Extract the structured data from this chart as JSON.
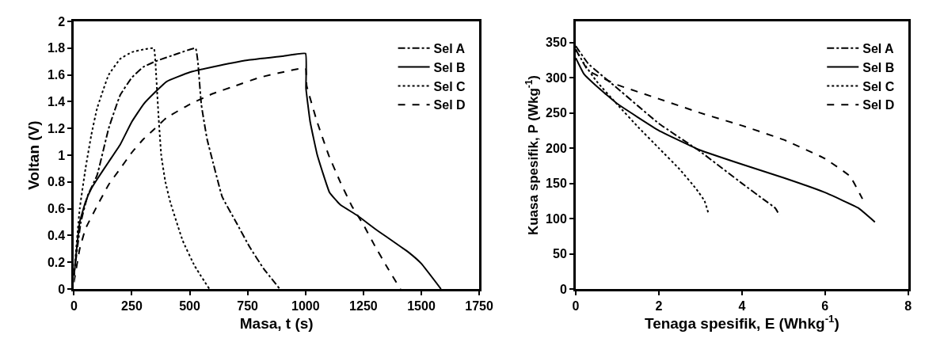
{
  "chart_data": [
    {
      "type": "line",
      "xlabel": "Masa, t (s)",
      "ylabel": "Voltan (V)",
      "xlim": [
        0,
        1750
      ],
      "xticks": [
        0,
        250,
        500,
        750,
        1000,
        1250,
        1500,
        1750
      ],
      "ylim": [
        0,
        2
      ],
      "yticks": [
        0,
        0.2,
        0.4,
        0.6,
        0.8,
        1,
        1.2,
        1.4,
        1.6,
        1.8,
        2
      ],
      "legend": "top right",
      "marker": "none",
      "series": [
        {
          "name": "Sel A",
          "color": "#000000",
          "line_style": "dashdot",
          "x": [
            0,
            30,
            60,
            100,
            150,
            200,
            250,
            300,
            350,
            450,
            525,
            535,
            550,
            575,
            600,
            640,
            700,
            760,
            820,
            889
          ],
          "values": [
            0.1,
            0.5,
            0.7,
            0.85,
            1.2,
            1.45,
            1.58,
            1.66,
            1.7,
            1.76,
            1.8,
            1.7,
            1.38,
            1.12,
            0.95,
            0.69,
            0.5,
            0.31,
            0.15,
            0
          ]
        },
        {
          "name": "Sel B",
          "color": "#000000",
          "line_style": "solid",
          "x": [
            0,
            25,
            50,
            75,
            100,
            150,
            200,
            250,
            300,
            350,
            400,
            500,
            600,
            750,
            900,
            1000,
            1002,
            1020,
            1051,
            1104,
            1150,
            1223,
            1300,
            1448,
            1500,
            1585
          ],
          "values": [
            0.1,
            0.5,
            0.65,
            0.75,
            0.82,
            0.95,
            1.08,
            1.25,
            1.38,
            1.47,
            1.55,
            1.62,
            1.66,
            1.71,
            1.74,
            1.76,
            1.5,
            1.25,
            1.0,
            0.72,
            0.63,
            0.55,
            0.45,
            0.27,
            0.19,
            0
          ]
        },
        {
          "name": "Sel C",
          "color": "#000000",
          "line_style": "dotted",
          "x": [
            0,
            25,
            50,
            75,
            100,
            150,
            200,
            250,
            300,
            345,
            355,
            365,
            377,
            395,
            416,
            470,
            522,
            585
          ],
          "values": [
            0.1,
            0.6,
            0.9,
            1.15,
            1.35,
            1.6,
            1.72,
            1.77,
            1.79,
            1.8,
            1.6,
            1.3,
            1.0,
            0.8,
            0.65,
            0.36,
            0.17,
            0
          ]
        },
        {
          "name": "Sel D",
          "color": "#000000",
          "line_style": "dashed",
          "x": [
            0,
            25,
            50,
            100,
            150,
            200,
            250,
            300,
            350,
            400,
            500,
            600,
            700,
            800,
            900,
            1000,
            1005,
            1050,
            1100,
            1150,
            1200,
            1250,
            1300,
            1350,
            1410
          ],
          "values": [
            0.05,
            0.3,
            0.45,
            0.62,
            0.78,
            0.9,
            1.02,
            1.12,
            1.2,
            1.28,
            1.38,
            1.46,
            1.52,
            1.58,
            1.62,
            1.65,
            1.52,
            1.25,
            1.0,
            0.8,
            0.62,
            0.48,
            0.32,
            0.17,
            0
          ]
        }
      ]
    },
    {
      "type": "line",
      "xlabel": "Tenaga spesifik, E (Whkg$^{-1}$)",
      "ylabel": "Kuasa spesifik, P (Wkg$^{-1}$)",
      "xlim": [
        0,
        8
      ],
      "xticks": [
        0,
        2,
        4,
        6,
        8
      ],
      "ylim": [
        0,
        380
      ],
      "yticks": [
        0,
        50,
        100,
        150,
        200,
        250,
        300,
        350
      ],
      "legend": "top right",
      "marker": "none",
      "series": [
        {
          "name": "Sel A",
          "color": "#000000",
          "line_style": "dashdot",
          "x": [
            0,
            0.3,
            1,
            2,
            3,
            4,
            4.5,
            4.8,
            4.9
          ],
          "values": [
            345,
            320,
            285,
            235,
            195,
            150,
            128,
            115,
            105
          ]
        },
        {
          "name": "Sel B",
          "color": "#000000",
          "line_style": "solid",
          "x": [
            0,
            0.2,
            0.5,
            1,
            2,
            3,
            4,
            5,
            6,
            6.8,
            7.2
          ],
          "values": [
            328,
            305,
            288,
            263,
            225,
            197,
            177,
            158,
            137,
            115,
            95
          ]
        },
        {
          "name": "Sel C",
          "color": "#000000",
          "line_style": "dotted",
          "x": [
            0,
            0.2,
            0.5,
            1,
            1.5,
            2,
            2.5,
            2.9,
            3.1,
            3.2
          ],
          "values": [
            340,
            320,
            295,
            262,
            230,
            200,
            170,
            142,
            125,
            106
          ]
        },
        {
          "name": "Sel D",
          "color": "#000000",
          "line_style": "dashed",
          "x": [
            0,
            0.3,
            1,
            2,
            3,
            4,
            5,
            6,
            6.6,
            6.9
          ],
          "values": [
            340,
            310,
            290,
            270,
            250,
            232,
            212,
            185,
            160,
            128
          ]
        }
      ]
    }
  ]
}
